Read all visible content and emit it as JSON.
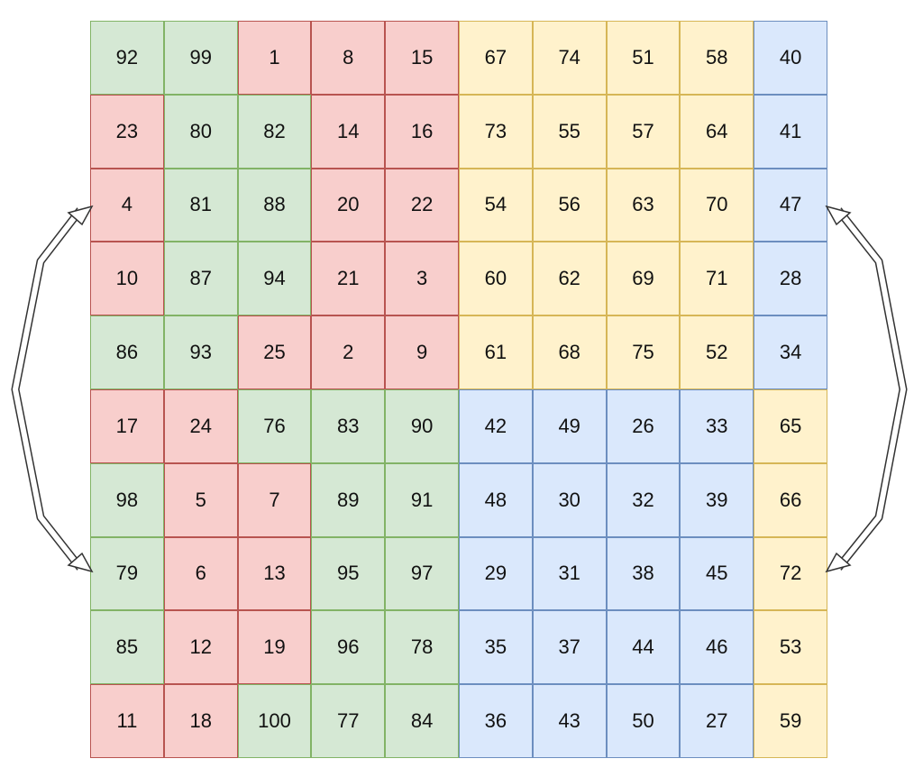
{
  "palette": {
    "g": {
      "fill": "#d5e8d4",
      "stroke": "#82b366"
    },
    "r": {
      "fill": "#f8cecc",
      "stroke": "#b85450"
    },
    "y": {
      "fill": "#fff2cc",
      "stroke": "#d6b656"
    },
    "b": {
      "fill": "#dae8fc",
      "stroke": "#6c8ebf"
    }
  },
  "grid": [
    [
      [
        "92",
        "g"
      ],
      [
        "99",
        "g"
      ],
      [
        "1",
        "r"
      ],
      [
        "8",
        "r"
      ],
      [
        "15",
        "r"
      ],
      [
        "67",
        "y"
      ],
      [
        "74",
        "y"
      ],
      [
        "51",
        "y"
      ],
      [
        "58",
        "y"
      ],
      [
        "40",
        "b"
      ]
    ],
    [
      [
        "23",
        "r"
      ],
      [
        "80",
        "g"
      ],
      [
        "82",
        "g"
      ],
      [
        "14",
        "r"
      ],
      [
        "16",
        "r"
      ],
      [
        "73",
        "y"
      ],
      [
        "55",
        "y"
      ],
      [
        "57",
        "y"
      ],
      [
        "64",
        "y"
      ],
      [
        "41",
        "b"
      ]
    ],
    [
      [
        "4",
        "r"
      ],
      [
        "81",
        "g"
      ],
      [
        "88",
        "g"
      ],
      [
        "20",
        "r"
      ],
      [
        "22",
        "r"
      ],
      [
        "54",
        "y"
      ],
      [
        "56",
        "y"
      ],
      [
        "63",
        "y"
      ],
      [
        "70",
        "y"
      ],
      [
        "47",
        "b"
      ]
    ],
    [
      [
        "10",
        "r"
      ],
      [
        "87",
        "g"
      ],
      [
        "94",
        "g"
      ],
      [
        "21",
        "r"
      ],
      [
        "3",
        "r"
      ],
      [
        "60",
        "y"
      ],
      [
        "62",
        "y"
      ],
      [
        "69",
        "y"
      ],
      [
        "71",
        "y"
      ],
      [
        "28",
        "b"
      ]
    ],
    [
      [
        "86",
        "g"
      ],
      [
        "93",
        "g"
      ],
      [
        "25",
        "r"
      ],
      [
        "2",
        "r"
      ],
      [
        "9",
        "r"
      ],
      [
        "61",
        "y"
      ],
      [
        "68",
        "y"
      ],
      [
        "75",
        "y"
      ],
      [
        "52",
        "y"
      ],
      [
        "34",
        "b"
      ]
    ],
    [
      [
        "17",
        "r"
      ],
      [
        "24",
        "r"
      ],
      [
        "76",
        "g"
      ],
      [
        "83",
        "g"
      ],
      [
        "90",
        "g"
      ],
      [
        "42",
        "b"
      ],
      [
        "49",
        "b"
      ],
      [
        "26",
        "b"
      ],
      [
        "33",
        "b"
      ],
      [
        "65",
        "y"
      ]
    ],
    [
      [
        "98",
        "g"
      ],
      [
        "5",
        "r"
      ],
      [
        "7",
        "r"
      ],
      [
        "89",
        "g"
      ],
      [
        "91",
        "g"
      ],
      [
        "48",
        "b"
      ],
      [
        "30",
        "b"
      ],
      [
        "32",
        "b"
      ],
      [
        "39",
        "b"
      ],
      [
        "66",
        "y"
      ]
    ],
    [
      [
        "79",
        "g"
      ],
      [
        "6",
        "r"
      ],
      [
        "13",
        "r"
      ],
      [
        "95",
        "g"
      ],
      [
        "97",
        "g"
      ],
      [
        "29",
        "b"
      ],
      [
        "31",
        "b"
      ],
      [
        "38",
        "b"
      ],
      [
        "45",
        "b"
      ],
      [
        "72",
        "y"
      ]
    ],
    [
      [
        "85",
        "g"
      ],
      [
        "12",
        "r"
      ],
      [
        "19",
        "r"
      ],
      [
        "96",
        "g"
      ],
      [
        "78",
        "g"
      ],
      [
        "35",
        "b"
      ],
      [
        "37",
        "b"
      ],
      [
        "44",
        "b"
      ],
      [
        "46",
        "b"
      ],
      [
        "53",
        "y"
      ]
    ],
    [
      [
        "11",
        "r"
      ],
      [
        "18",
        "r"
      ],
      [
        "100",
        "g"
      ],
      [
        "77",
        "g"
      ],
      [
        "84",
        "g"
      ],
      [
        "36",
        "b"
      ],
      [
        "43",
        "b"
      ],
      [
        "50",
        "b"
      ],
      [
        "27",
        "b"
      ],
      [
        "59",
        "y"
      ]
    ]
  ],
  "connectors": [
    {
      "side": "left",
      "from_row": 2,
      "to_row": 7,
      "arrowheads": "both"
    },
    {
      "side": "right",
      "from_row": 2,
      "to_row": 7,
      "arrowheads": "both"
    }
  ]
}
